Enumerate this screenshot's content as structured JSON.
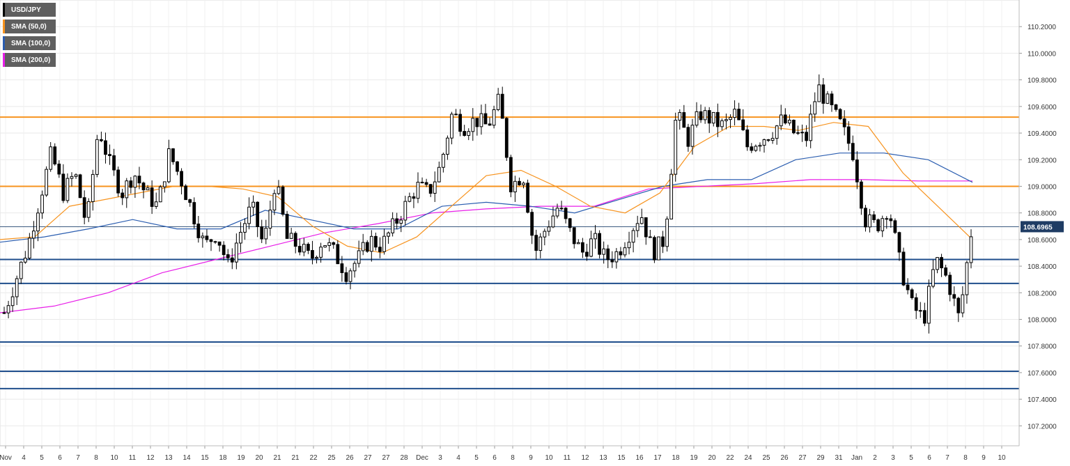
{
  "chart_data": {
    "type": "candlestick",
    "symbol": "USD/JPY",
    "legend": [
      {
        "label": "USD/JPY",
        "color": "#000000"
      },
      {
        "label": "SMA (50,0)",
        "color": "#f7931e"
      },
      {
        "label": "SMA (100,0)",
        "color": "#2a5db0"
      },
      {
        "label": "SMA (200,0)",
        "color": "#e81ee8"
      }
    ],
    "current_price": "108.6965",
    "current_price_value": 108.6965,
    "ylim": [
      107.05,
      110.4
    ],
    "y_ticks": [
      "107.2000",
      "107.4000",
      "107.6000",
      "107.8000",
      "108.0000",
      "108.2000",
      "108.4000",
      "108.6000",
      "108.8000",
      "109.0000",
      "109.2000",
      "109.4000",
      "109.6000",
      "109.8000",
      "110.0000",
      "110.2000"
    ],
    "x_ticks": [
      "Nov",
      "4",
      "5",
      "6",
      "7",
      "8",
      "10",
      "11",
      "12",
      "13",
      "14",
      "15",
      "18",
      "19",
      "20",
      "21",
      "21",
      "22",
      "25",
      "26",
      "27",
      "27",
      "28",
      "Dec",
      "3",
      "4",
      "5",
      "6",
      "8",
      "9",
      "10",
      "11",
      "12",
      "13",
      "15",
      "16",
      "17",
      "18",
      "19",
      "20",
      "22",
      "24",
      "25",
      "26",
      "27",
      "29",
      "31",
      "Jan",
      "2",
      "3",
      "5",
      "6",
      "7",
      "8",
      "9",
      "10"
    ],
    "resistance_levels": [
      109.52,
      109.0
    ],
    "support_levels": [
      108.45,
      108.27,
      107.83,
      107.61,
      107.48
    ],
    "candle_series": [
      108.05,
      108.3,
      108.55,
      108.9,
      109.25,
      108.95,
      109.1,
      108.7,
      109.45,
      109.15,
      108.95,
      109.1,
      108.95,
      108.85,
      109.25,
      109.05,
      108.8,
      108.55,
      108.65,
      108.4,
      108.65,
      108.85,
      108.55,
      109.05,
      108.6,
      108.55,
      108.45,
      108.6,
      108.5,
      108.35,
      108.45,
      108.6,
      108.55,
      108.7,
      108.85,
      109.0,
      108.95,
      109.15,
      109.55,
      109.45,
      109.5,
      109.45,
      109.65,
      109.0,
      109.1,
      108.5,
      108.7,
      108.85,
      108.65,
      108.5,
      108.6,
      108.45,
      108.5,
      108.65,
      108.8,
      108.5,
      108.6,
      109.55,
      109.35,
      109.55,
      109.5,
      109.45,
      109.55,
      109.3,
      109.35,
      109.4,
      109.5,
      109.4,
      109.35,
      109.75,
      109.6,
      109.45,
      109.25,
      108.75,
      108.7,
      108.85,
      108.4,
      108.1,
      108.0,
      108.45,
      108.3,
      108.0,
      108.65
    ],
    "sma50_series": [
      108.6,
      108.62,
      108.85,
      108.9,
      108.95,
      109.0,
      109.0,
      108.98,
      108.92,
      108.7,
      108.55,
      108.5,
      108.62,
      108.85,
      109.08,
      109.12,
      109.0,
      108.85,
      108.8,
      108.95,
      109.3,
      109.45,
      109.45,
      109.42,
      109.48,
      109.45,
      109.1,
      108.85,
      108.6
    ],
    "sma100_series": [
      108.58,
      108.62,
      108.68,
      108.75,
      108.68,
      108.68,
      108.82,
      108.75,
      108.68,
      108.68,
      108.85,
      108.88,
      108.85,
      108.8,
      108.9,
      109.0,
      109.05,
      109.05,
      109.2,
      109.25,
      109.25,
      109.2,
      109.03
    ],
    "sma200_series": [
      108.05,
      108.1,
      108.2,
      108.35,
      108.45,
      108.55,
      108.65,
      108.72,
      108.8,
      108.83,
      108.85,
      108.85,
      108.98,
      109.0,
      109.02,
      109.05,
      109.05,
      109.04,
      109.04
    ]
  }
}
